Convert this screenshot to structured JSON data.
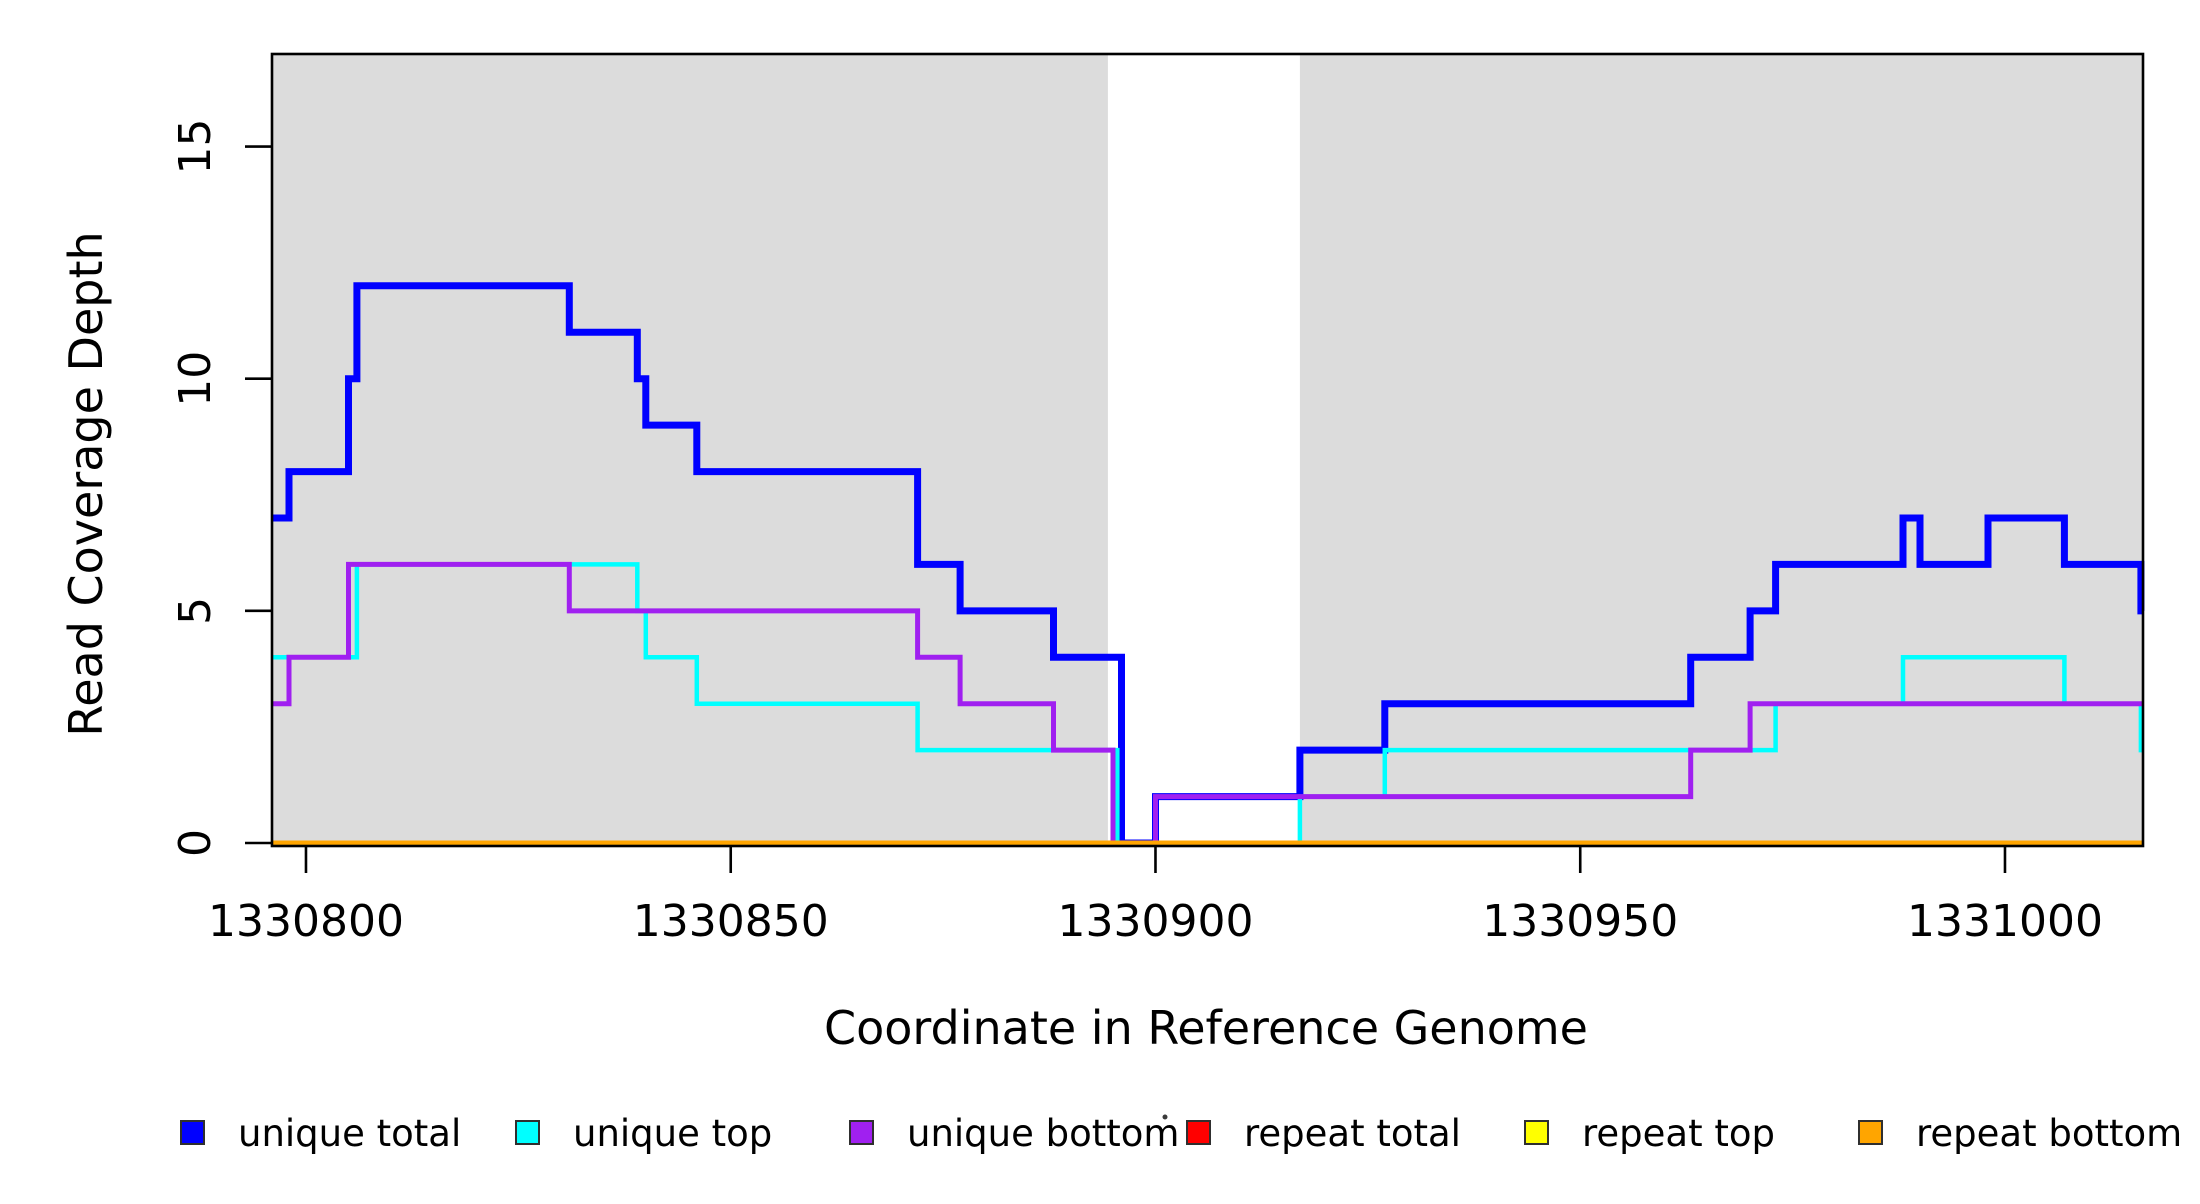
{
  "figure": {
    "background": "#ffffff",
    "plot_background": "#ffffff",
    "shade_color": "#dcdcdc",
    "box_color": "#000000"
  },
  "chart_data": {
    "type": "line",
    "subtype": "step-after",
    "title": "",
    "xlabel": "Coordinate in Reference Genome",
    "ylabel": "Read Coverage Depth",
    "xlim": [
      1330796,
      1331016.3
    ],
    "ylim": [
      0,
      17
    ],
    "grid": false,
    "legend_position": "bottom-horizontal",
    "x_ticks": [
      1330800,
      1330850,
      1330900,
      1330950,
      1331000
    ],
    "x_tick_labels": [
      "1330800",
      "1330850",
      "1330900",
      "1330950",
      "1331000"
    ],
    "y_ticks": [
      0,
      5,
      10,
      15
    ],
    "y_tick_labels": [
      "0",
      "5",
      "10",
      "15"
    ],
    "shaded_regions": [
      {
        "from": 1330796,
        "to": 1330894.4
      },
      {
        "from": 1330917,
        "to": 1331016.3
      }
    ],
    "series": [
      {
        "name": "unique total",
        "color": "#0000ff",
        "line_width": 7,
        "steps": [
          [
            1330796,
            7
          ],
          [
            1330798,
            8
          ],
          [
            1330805,
            10
          ],
          [
            1330806,
            12
          ],
          [
            1330831,
            11
          ],
          [
            1330839,
            10
          ],
          [
            1330840,
            9
          ],
          [
            1330846,
            8
          ],
          [
            1330872,
            6
          ],
          [
            1330877,
            5
          ],
          [
            1330888,
            4
          ],
          [
            1330896,
            0
          ],
          [
            1330900,
            1
          ],
          [
            1330917,
            2
          ],
          [
            1330927,
            3
          ],
          [
            1330963,
            4
          ],
          [
            1330970,
            5
          ],
          [
            1330973,
            6
          ],
          [
            1330988,
            7
          ],
          [
            1330990,
            6
          ],
          [
            1330998,
            7
          ],
          [
            1331007,
            6
          ],
          [
            1331016,
            5
          ]
        ]
      },
      {
        "name": "unique top",
        "color": "#00ffff",
        "line_width": 4.5,
        "steps": [
          [
            1330796,
            4
          ],
          [
            1330806,
            6
          ],
          [
            1330839,
            5
          ],
          [
            1330840,
            4
          ],
          [
            1330846,
            3
          ],
          [
            1330872,
            2
          ],
          [
            1330895.5,
            0
          ],
          [
            1330917,
            1
          ],
          [
            1330927,
            2
          ],
          [
            1330973,
            3
          ],
          [
            1330988,
            4
          ],
          [
            1331007,
            3
          ],
          [
            1331016,
            2
          ]
        ]
      },
      {
        "name": "unique bottom",
        "color": "#a020f0",
        "line_width": 5,
        "steps": [
          [
            1330796,
            3
          ],
          [
            1330798,
            4
          ],
          [
            1330805,
            6
          ],
          [
            1330831,
            5
          ],
          [
            1330872,
            4
          ],
          [
            1330877,
            3
          ],
          [
            1330888,
            2
          ],
          [
            1330895,
            0
          ],
          [
            1330900,
            1
          ],
          [
            1330963,
            2
          ],
          [
            1330970,
            3
          ]
        ]
      },
      {
        "name": "repeat total",
        "color": "#ff0000",
        "line_width": 4,
        "steps": [
          [
            1330796,
            0
          ]
        ]
      },
      {
        "name": "repeat top",
        "color": "#ffff00",
        "line_width": 4,
        "steps": [
          [
            1330796,
            0
          ]
        ]
      },
      {
        "name": "repeat bottom",
        "color": "#ffa500",
        "line_width": 5,
        "steps": [
          [
            1330796,
            0
          ]
        ]
      }
    ],
    "legend": [
      {
        "label": "unique total",
        "color": "#0000ff"
      },
      {
        "label": "unique top",
        "color": "#00ffff"
      },
      {
        "label": "unique bottom",
        "color": "#a020f0"
      },
      {
        "label": "repeat total",
        "color": "#ff0000"
      },
      {
        "label": "repeat top",
        "color": "#ffff00"
      },
      {
        "label": "repeat bottom",
        "color": "#ffa500"
      }
    ]
  }
}
